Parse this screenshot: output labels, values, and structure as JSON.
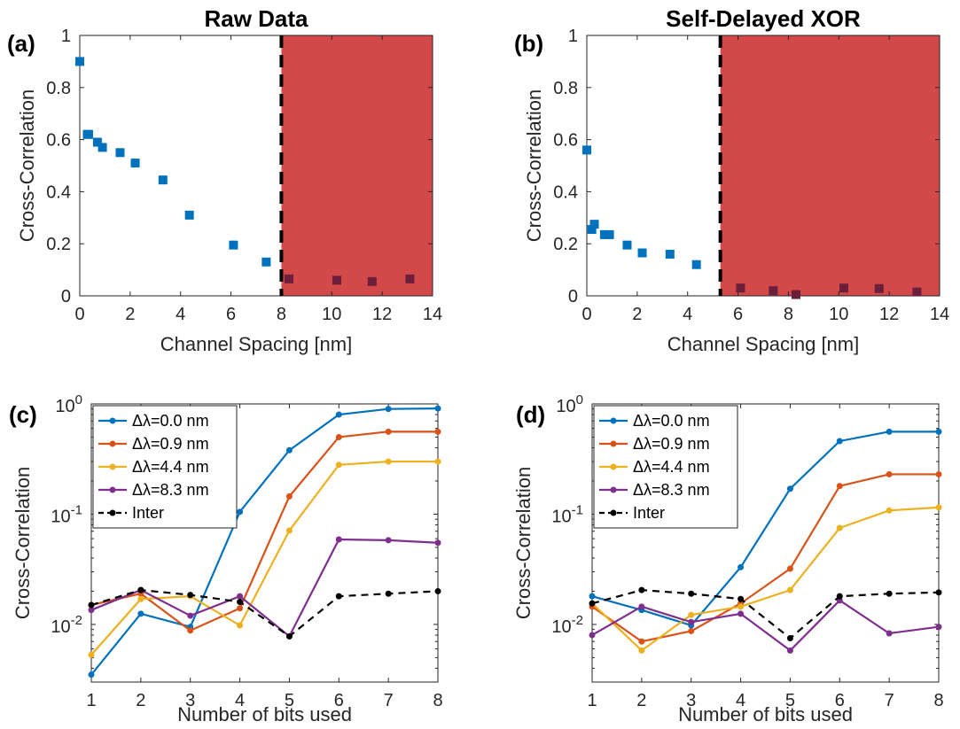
{
  "chart_data": [
    {
      "panel": "(a)",
      "type": "scatter",
      "title": "Raw Data",
      "xlabel": "Channel Spacing [nm]",
      "ylabel": "Cross-Correlation",
      "xlim": [
        0,
        14
      ],
      "ylim": [
        0,
        1
      ],
      "x_ticks": [
        "0",
        "2",
        "4",
        "6",
        "8",
        "10",
        "12",
        "14"
      ],
      "y_ticks": [
        "0",
        "0.2",
        "0.4",
        "0.6",
        "0.8",
        "1"
      ],
      "threshold_x": 8.0,
      "shaded_region": [
        8.0,
        14
      ],
      "colors": {
        "marker": "#0072BD",
        "shade": "#C81C1C",
        "shade_opacity": "0.8",
        "threshold": "#000000"
      },
      "points": [
        {
          "x": 0,
          "y": 0.9
        },
        {
          "x": 0.3,
          "y": 0.62
        },
        {
          "x": 0.35,
          "y": 0.62
        },
        {
          "x": 0.7,
          "y": 0.59
        },
        {
          "x": 0.9,
          "y": 0.57
        },
        {
          "x": 1.6,
          "y": 0.55
        },
        {
          "x": 2.2,
          "y": 0.51
        },
        {
          "x": 3.3,
          "y": 0.445
        },
        {
          "x": 4.35,
          "y": 0.31
        },
        {
          "x": 6.1,
          "y": 0.195
        },
        {
          "x": 7.4,
          "y": 0.13
        },
        {
          "x": 8.3,
          "y": 0.065
        },
        {
          "x": 10.2,
          "y": 0.06
        },
        {
          "x": 11.6,
          "y": 0.055
        },
        {
          "x": 13.1,
          "y": 0.065
        }
      ]
    },
    {
      "panel": "(b)",
      "type": "scatter",
      "title": "Self-Delayed XOR",
      "xlabel": "Channel Spacing [nm]",
      "ylabel": "Cross-Correlation",
      "xlim": [
        0,
        14
      ],
      "ylim": [
        0,
        1
      ],
      "x_ticks": [
        "0",
        "2",
        "4",
        "6",
        "8",
        "10",
        "12",
        "14"
      ],
      "y_ticks": [
        "0",
        "0.2",
        "0.4",
        "0.6",
        "0.8",
        "1"
      ],
      "threshold_x": 5.3,
      "shaded_region": [
        5.3,
        14
      ],
      "colors": {
        "marker": "#0072BD",
        "shade": "#C81C1C",
        "shade_opacity": "0.8",
        "threshold": "#000000"
      },
      "points": [
        {
          "x": 0,
          "y": 0.56
        },
        {
          "x": 0.2,
          "y": 0.255
        },
        {
          "x": 0.3,
          "y": 0.275
        },
        {
          "x": 0.7,
          "y": 0.235
        },
        {
          "x": 0.9,
          "y": 0.235
        },
        {
          "x": 1.6,
          "y": 0.195
        },
        {
          "x": 2.2,
          "y": 0.165
        },
        {
          "x": 3.3,
          "y": 0.16
        },
        {
          "x": 4.35,
          "y": 0.12
        },
        {
          "x": 6.1,
          "y": 0.03
        },
        {
          "x": 7.4,
          "y": 0.02
        },
        {
          "x": 8.3,
          "y": 0.005
        },
        {
          "x": 10.2,
          "y": 0.03
        },
        {
          "x": 11.6,
          "y": 0.028
        },
        {
          "x": 13.1,
          "y": 0.015
        }
      ]
    },
    {
      "panel": "(c)",
      "type": "line",
      "xlabel": "Number of bits used",
      "ylabel": "Cross-Correlation",
      "log_y": true,
      "xlim": [
        1,
        8
      ],
      "ylim": [
        0.003,
        1
      ],
      "x": [
        1,
        2,
        3,
        4,
        5,
        6,
        7,
        8
      ],
      "x_ticks": [
        "1",
        "2",
        "3",
        "4",
        "5",
        "6",
        "7",
        "8"
      ],
      "y_ticks": [
        {
          "base": "10",
          "exp": "-2",
          "value": 0.01
        },
        {
          "base": "10",
          "exp": "-1",
          "value": 0.1
        },
        {
          "base": "10",
          "exp": "0",
          "value": 1
        }
      ],
      "series": [
        {
          "name": "Δλ=0.0 nm",
          "color": "#0072BD",
          "dash": "",
          "values": [
            0.0035,
            0.0125,
            0.0095,
            0.105,
            0.38,
            0.8,
            0.9,
            0.91
          ]
        },
        {
          "name": "Δλ=0.9 nm",
          "color": "#D95319",
          "dash": "",
          "values": [
            0.015,
            0.019,
            0.0088,
            0.014,
            0.145,
            0.5,
            0.56,
            0.56
          ]
        },
        {
          "name": "Δλ=4.4 nm",
          "color": "#EDB120",
          "dash": "",
          "values": [
            0.0053,
            0.017,
            0.018,
            0.0098,
            0.071,
            0.28,
            0.3,
            0.3
          ]
        },
        {
          "name": "Δλ=8.3 nm",
          "color": "#7E2F8E",
          "dash": "",
          "values": [
            0.0135,
            0.0205,
            0.012,
            0.018,
            0.0078,
            0.059,
            0.058,
            0.055
          ]
        },
        {
          "name": "Inter",
          "color": "#000000",
          "dash": "8,6",
          "values": [
            0.015,
            0.0205,
            0.0185,
            0.016,
            0.0078,
            0.018,
            0.019,
            0.02
          ]
        }
      ]
    },
    {
      "panel": "(d)",
      "type": "line",
      "xlabel": "Number of bits used",
      "ylabel": "Cross-Correlation",
      "log_y": true,
      "xlim": [
        1,
        8
      ],
      "ylim": [
        0.003,
        1
      ],
      "x": [
        1,
        2,
        3,
        4,
        5,
        6,
        7,
        8
      ],
      "x_ticks": [
        "1",
        "2",
        "3",
        "4",
        "5",
        "6",
        "7",
        "8"
      ],
      "y_ticks": [
        {
          "base": "10",
          "exp": "-2",
          "value": 0.01
        },
        {
          "base": "10",
          "exp": "-1",
          "value": 0.1
        },
        {
          "base": "10",
          "exp": "0",
          "value": 1
        }
      ],
      "series": [
        {
          "name": "Δλ=0.0 nm",
          "color": "#0072BD",
          "dash": "",
          "values": [
            0.018,
            0.0135,
            0.0098,
            0.033,
            0.17,
            0.46,
            0.56,
            0.56
          ]
        },
        {
          "name": "Δλ=0.9 nm",
          "color": "#D95319",
          "dash": "",
          "values": [
            0.0145,
            0.007,
            0.0087,
            0.0155,
            0.032,
            0.18,
            0.23,
            0.23
          ]
        },
        {
          "name": "Δλ=4.4 nm",
          "color": "#EDB120",
          "dash": "",
          "values": [
            0.0155,
            0.0058,
            0.0122,
            0.0145,
            0.0205,
            0.075,
            0.108,
            0.115
          ]
        },
        {
          "name": "Δλ=8.3 nm",
          "color": "#7E2F8E",
          "dash": "",
          "values": [
            0.008,
            0.0145,
            0.0105,
            0.0125,
            0.0058,
            0.0165,
            0.0083,
            0.0095
          ]
        },
        {
          "name": "Inter",
          "color": "#000000",
          "dash": "8,6",
          "values": [
            0.0155,
            0.0205,
            0.019,
            0.017,
            0.0075,
            0.018,
            0.019,
            0.0195
          ]
        }
      ]
    }
  ]
}
